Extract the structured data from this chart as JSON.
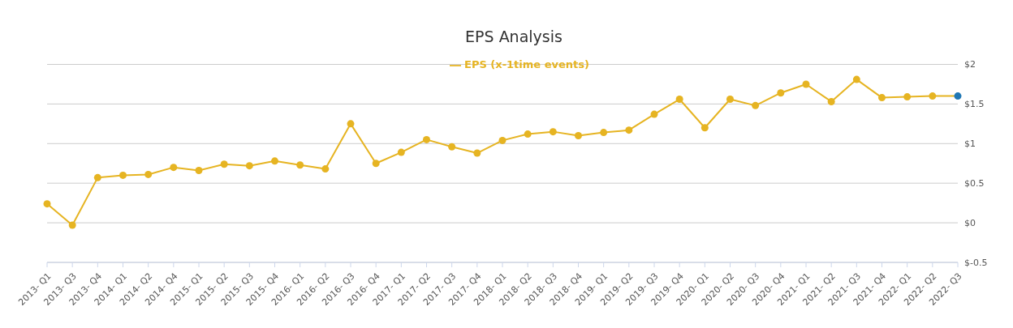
{
  "chart_data": {
    "type": "line",
    "title": "EPS Analysis",
    "categories": [
      "2013- Q1",
      "2013- Q3",
      "2013- Q4",
      "2014- Q1",
      "2014- Q2",
      "2014- Q4",
      "2015- Q1",
      "2015- Q2",
      "2015- Q3",
      "2015- Q4",
      "2016- Q1",
      "2016- Q2",
      "2016- Q3",
      "2016- Q4",
      "2017- Q1",
      "2017- Q2",
      "2017- Q3",
      "2017- Q4",
      "2018- Q1",
      "2018- Q2",
      "2018- Q3",
      "2018- Q4",
      "2019- Q1",
      "2019- Q2",
      "2019- Q3",
      "2019- Q4",
      "2020- Q1",
      "2020- Q2",
      "2020- Q3",
      "2020- Q4",
      "2021- Q1",
      "2021- Q2",
      "2021- Q3",
      "2021- Q4",
      "2022- Q1",
      "2022- Q2",
      "2022- Q3"
    ],
    "series": [
      {
        "name": "EPS (x-1time events)",
        "color": "#e6b422",
        "values": [
          0.24,
          -0.03,
          0.57,
          0.6,
          0.61,
          0.7,
          0.66,
          0.74,
          0.72,
          0.78,
          0.73,
          0.68,
          1.25,
          0.75,
          0.89,
          1.05,
          0.96,
          0.88,
          1.04,
          1.12,
          1.15,
          1.1,
          1.14,
          1.17,
          1.37,
          1.56,
          1.2,
          1.56,
          1.48,
          1.64,
          1.75,
          1.53,
          1.81,
          1.58,
          1.59,
          1.6,
          1.6
        ],
        "colors": [
          "#e6b422",
          "#e6b422",
          "#e6b422",
          "#e6b422",
          "#e6b422",
          "#e6b422",
          "#e6b422",
          "#e6b422",
          "#e6b422",
          "#e6b422",
          "#e6b422",
          "#e6b422",
          "#e6b422",
          "#e6b422",
          "#e6b422",
          "#e6b422",
          "#e6b422",
          "#e6b422",
          "#e6b422",
          "#e6b422",
          "#e6b422",
          "#e6b422",
          "#e6b422",
          "#e6b422",
          "#e6b422",
          "#e6b422",
          "#e6b422",
          "#e6b422",
          "#e6b422",
          "#e6b422",
          "#e6b422",
          "#e6b422",
          "#e6b422",
          "#e6b422",
          "#e6b422",
          "#e6b422",
          "#1f77b4"
        ]
      }
    ],
    "ylim": [
      -0.5,
      2
    ],
    "yticks": [
      {
        "value": -0.5,
        "label": "$-0.5"
      },
      {
        "value": 0,
        "label": "$0"
      },
      {
        "value": 0.5,
        "label": "$0.5"
      },
      {
        "value": 1,
        "label": "$1"
      },
      {
        "value": 1.5,
        "label": "$1.5"
      },
      {
        "value": 2,
        "label": "$2"
      }
    ],
    "grid": "y",
    "legend": "top",
    "marker": "circle",
    "line_style": "solid"
  }
}
